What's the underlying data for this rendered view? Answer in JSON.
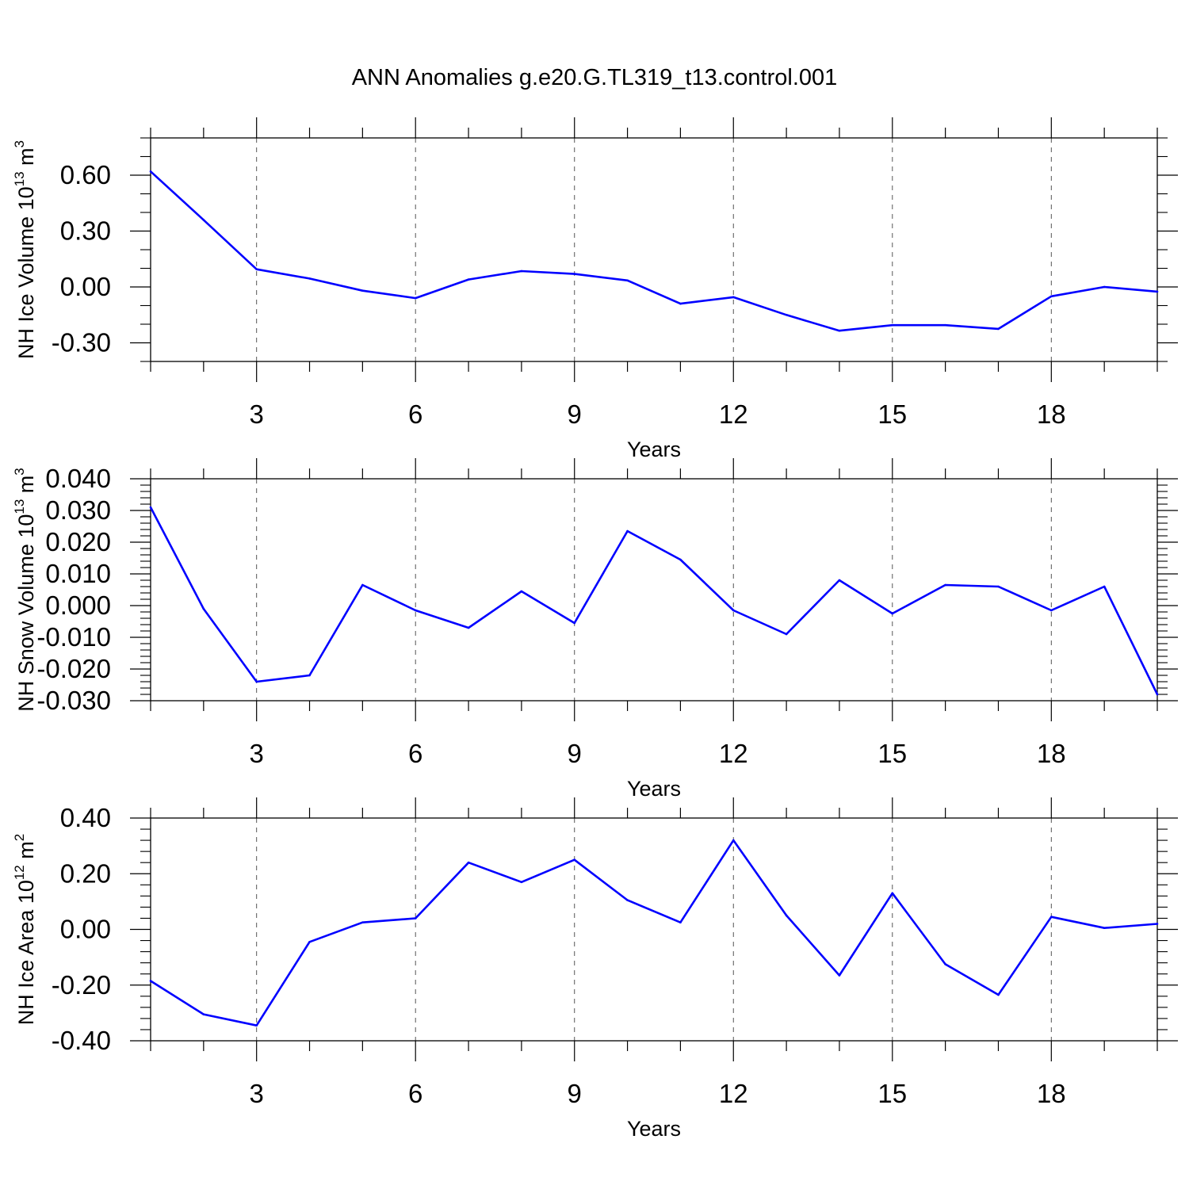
{
  "title": "ANN Anomalies g.e20.G.TL319_t13.control.001",
  "colors": {
    "line": "#0000ff",
    "axis": "#000000"
  },
  "chart_data": [
    {
      "type": "line",
      "name": "nh-ice-volume",
      "ylabel": {
        "main": "NH Ice Volume 10",
        "exp": "13",
        "unit": " m",
        "unit_exp": "3"
      },
      "xlabel": "Years",
      "xlim": [
        1,
        20
      ],
      "ylim": [
        -0.4,
        0.8
      ],
      "x_ticks": [
        3,
        6,
        9,
        12,
        15,
        18
      ],
      "x_tick_labels": [
        "3",
        "6",
        "9",
        "12",
        "15",
        "18"
      ],
      "y_ticks": [
        -0.3,
        0.0,
        0.3,
        0.6
      ],
      "y_tick_labels": [
        "-0.30",
        "0.00",
        "0.30",
        "0.60"
      ],
      "y_minor_step": 0.1,
      "x": [
        1,
        2,
        3,
        4,
        5,
        6,
        7,
        8,
        9,
        10,
        11,
        12,
        13,
        14,
        15,
        16,
        17,
        18,
        19,
        20
      ],
      "values": [
        0.62,
        0.36,
        0.095,
        0.045,
        -0.02,
        -0.06,
        0.04,
        0.085,
        0.07,
        0.035,
        -0.09,
        -0.055,
        -0.15,
        -0.235,
        -0.205,
        -0.205,
        -0.225,
        -0.05,
        0.0,
        -0.025
      ]
    },
    {
      "type": "line",
      "name": "nh-snow-volume",
      "ylabel": {
        "main": "NH Snow Volume 10",
        "exp": "13",
        "unit": " m",
        "unit_exp": "3"
      },
      "xlabel": "Years",
      "xlim": [
        1,
        20
      ],
      "ylim": [
        -0.03,
        0.04
      ],
      "x_ticks": [
        3,
        6,
        9,
        12,
        15,
        18
      ],
      "x_tick_labels": [
        "3",
        "6",
        "9",
        "12",
        "15",
        "18"
      ],
      "y_ticks": [
        -0.03,
        -0.02,
        -0.01,
        0.0,
        0.01,
        0.02,
        0.03,
        0.04
      ],
      "y_tick_labels": [
        "-0.030",
        "-0.020",
        "-0.010",
        "0.000",
        "0.010",
        "0.020",
        "0.030",
        "0.040"
      ],
      "y_minor_step": 0.002,
      "x": [
        1,
        2,
        3,
        4,
        5,
        6,
        7,
        8,
        9,
        10,
        11,
        12,
        13,
        14,
        15,
        16,
        17,
        18,
        19,
        20
      ],
      "values": [
        0.031,
        -0.001,
        -0.024,
        -0.022,
        0.0065,
        -0.0015,
        -0.007,
        0.0045,
        -0.0055,
        0.0235,
        0.0145,
        -0.0015,
        -0.009,
        0.008,
        -0.0025,
        0.0065,
        0.006,
        -0.0015,
        0.006,
        -0.028
      ]
    },
    {
      "type": "line",
      "name": "nh-ice-area",
      "ylabel": {
        "main": "NH Ice Area 10",
        "exp": "12",
        "unit": " m",
        "unit_exp": "2"
      },
      "xlabel": "Years",
      "xlim": [
        1,
        20
      ],
      "ylim": [
        -0.4,
        0.4
      ],
      "x_ticks": [
        3,
        6,
        9,
        12,
        15,
        18
      ],
      "x_tick_labels": [
        "3",
        "6",
        "9",
        "12",
        "15",
        "18"
      ],
      "y_ticks": [
        -0.4,
        -0.2,
        0.0,
        0.2,
        0.4
      ],
      "y_tick_labels": [
        "-0.40",
        "-0.20",
        "0.00",
        "0.20",
        "0.40"
      ],
      "y_minor_step": 0.04,
      "x": [
        1,
        2,
        3,
        4,
        5,
        6,
        7,
        8,
        9,
        10,
        11,
        12,
        13,
        14,
        15,
        16,
        17,
        18,
        19,
        20
      ],
      "values": [
        -0.185,
        -0.305,
        -0.345,
        -0.045,
        0.025,
        0.04,
        0.24,
        0.17,
        0.25,
        0.105,
        0.025,
        0.32,
        0.05,
        -0.165,
        0.13,
        -0.125,
        -0.235,
        0.045,
        0.005,
        0.02
      ]
    }
  ]
}
